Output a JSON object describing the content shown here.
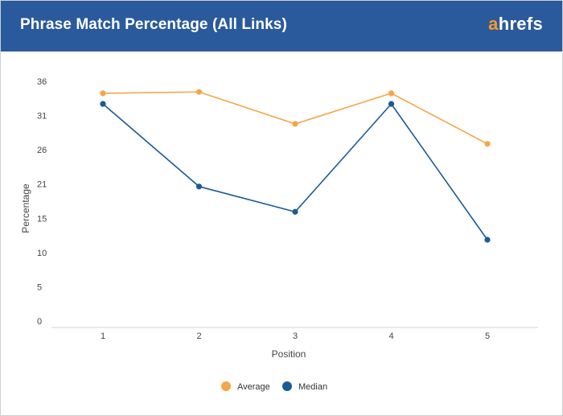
{
  "header": {
    "title": "Phrase Match Percentage (All Links)",
    "logo_accent": "a",
    "logo_rest": "hrefs"
  },
  "colors": {
    "header_bg": "#2a5a9c",
    "average": "#f5a54a",
    "median": "#1a5b97",
    "logo_accent": "#f59a23"
  },
  "chart_data": {
    "type": "line",
    "title": "Phrase Match Percentage (All Links)",
    "xlabel": "Position",
    "ylabel": "Percentage",
    "categories": [
      "1",
      "2",
      "3",
      "4",
      "5"
    ],
    "yticks": [
      "0",
      "5",
      "10",
      "15",
      "21",
      "26",
      "31",
      "36"
    ],
    "ylim": [
      0,
      36
    ],
    "grid": false,
    "legend_position": "bottom-center",
    "series": [
      {
        "name": "Average",
        "color": "#f5a54a",
        "values": [
          34.2,
          34.4,
          29.6,
          34.2,
          26.6
        ]
      },
      {
        "name": "Median",
        "color": "#1a5b97",
        "values": [
          32.6,
          20.2,
          16.4,
          32.6,
          12.2
        ]
      }
    ]
  }
}
